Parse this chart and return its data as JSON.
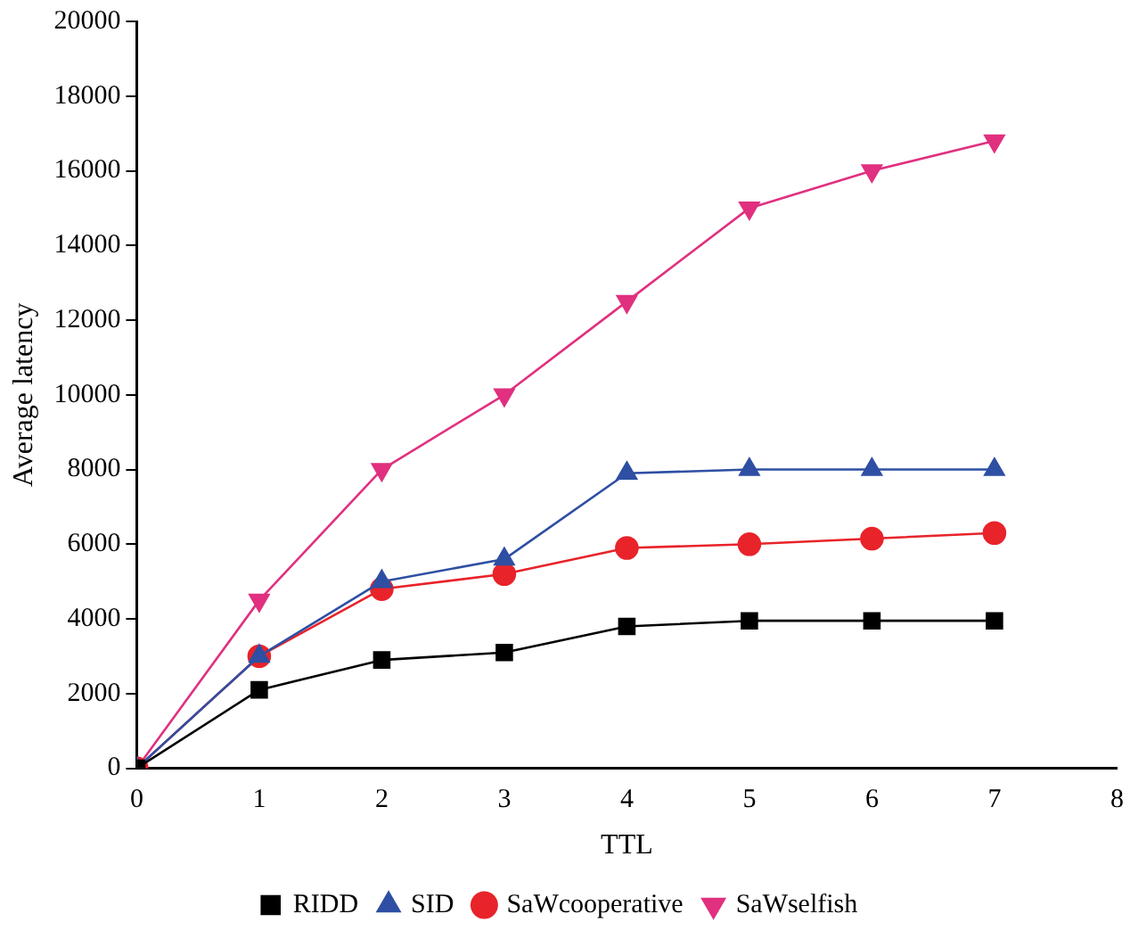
{
  "chart_data": {
    "type": "line",
    "xlabel": "TTL",
    "ylabel": "Average latency",
    "x": [
      0,
      1,
      2,
      3,
      4,
      5,
      6,
      7
    ],
    "xlim": [
      0,
      8
    ],
    "xticks": [
      0,
      1,
      2,
      3,
      4,
      5,
      6,
      7,
      8
    ],
    "ylim": [
      0,
      20000
    ],
    "yticks": [
      0,
      2000,
      4000,
      6000,
      8000,
      10000,
      12000,
      14000,
      16000,
      18000,
      20000
    ],
    "grid": false,
    "legend": "bottom",
    "line_style": "solid",
    "series": [
      {
        "name": "RIDD",
        "color": "#000000",
        "marker": "square",
        "values": [
          0,
          2100,
          2900,
          3100,
          3800,
          3950,
          3950,
          3950
        ]
      },
      {
        "name": "SID",
        "color": "#2e4fa3",
        "marker": "triangle",
        "values": [
          0,
          3000,
          5000,
          5600,
          7900,
          8000,
          8000,
          8000
        ]
      },
      {
        "name": "SaWcooperative",
        "color": "#e8232a",
        "marker": "circle",
        "values": [
          0,
          3000,
          4800,
          5200,
          5900,
          6000,
          6150,
          6300
        ]
      },
      {
        "name": "SaWselfish",
        "color": "#e0307f",
        "marker": "triangle-down",
        "values": [
          0,
          4500,
          8000,
          10000,
          12500,
          15000,
          16000,
          16800
        ]
      }
    ]
  }
}
